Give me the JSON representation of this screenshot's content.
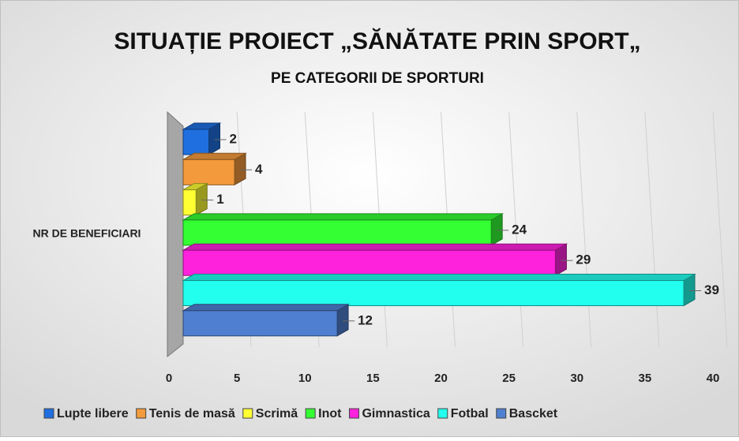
{
  "chart_data": {
    "type": "bar3d_horizontal",
    "title": "SITUAȚIE PROIECT „SĂNĂTATE PRIN SPORT„",
    "subtitle": "PE CATEGORII DE SPORTURI",
    "categories": [
      "NR DE BENEFICIARI"
    ],
    "series": [
      {
        "name": "Lupte libere",
        "color": "#1f6fe0",
        "values": [
          2
        ]
      },
      {
        "name": "Tenis de masă",
        "color": "#f39a3c",
        "values": [
          4
        ]
      },
      {
        "name": "Scrimă",
        "color": "#ffff33",
        "values": [
          1
        ]
      },
      {
        "name": "Inot",
        "color": "#33ff33",
        "values": [
          24
        ]
      },
      {
        "name": "Gimnastica",
        "color": "#ff22dd",
        "values": [
          29
        ]
      },
      {
        "name": "Fotbal",
        "color": "#22ffee",
        "values": [
          39
        ]
      },
      {
        "name": "Bascket",
        "color": "#4f7fd0",
        "values": [
          12
        ]
      }
    ],
    "xlim": [
      0,
      40
    ],
    "xticks": [
      0,
      5,
      10,
      15,
      20,
      25,
      30,
      35,
      40
    ],
    "grid": true,
    "legend": "bottom"
  }
}
